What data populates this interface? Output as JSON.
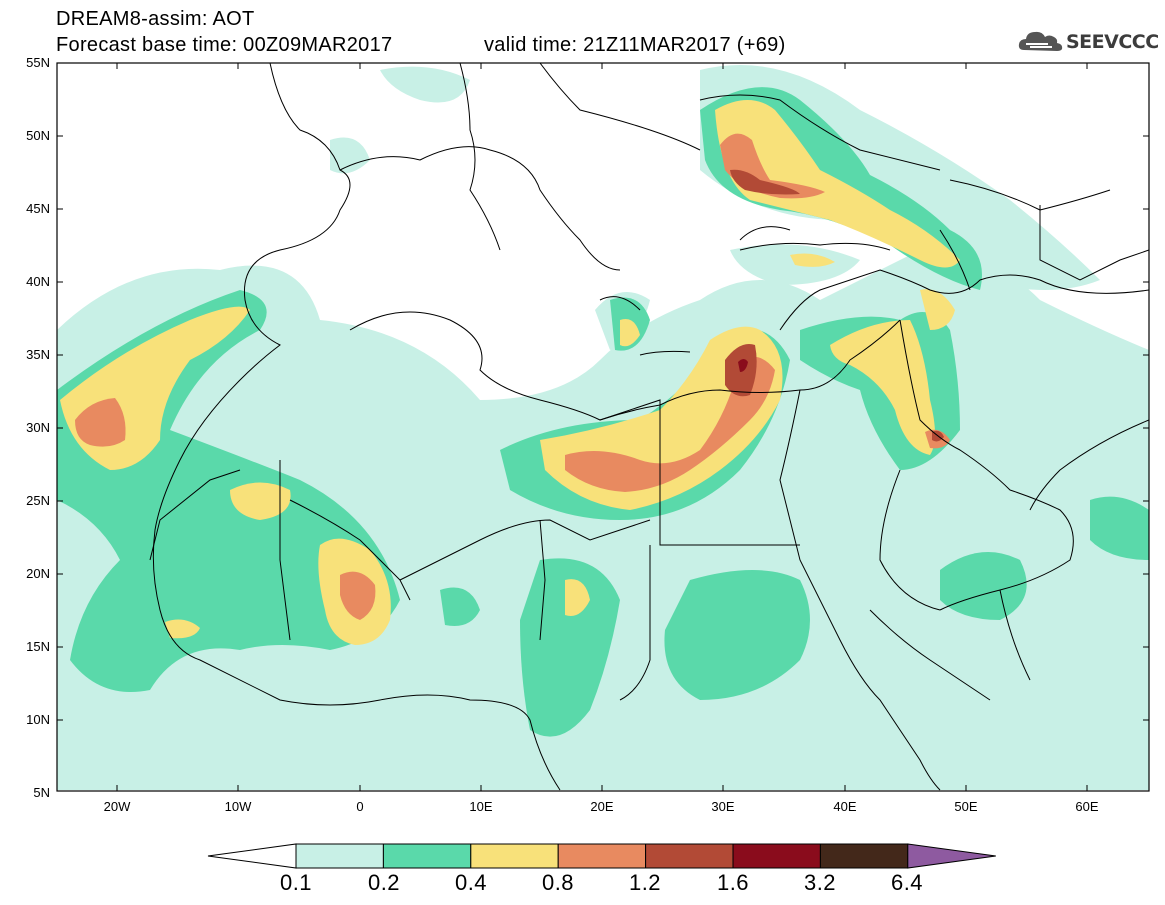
{
  "header": {
    "line1": "DREAM8-assim: AOT",
    "line2": "Forecast base time: 00Z09MAR2017",
    "valid": "valid time: 21Z11MAR2017 (+69)",
    "logo_text": "SEEVCCC"
  },
  "axes": {
    "lat_labels": [
      "55N",
      "50N",
      "45N",
      "40N",
      "35N",
      "30N",
      "25N",
      "20N",
      "15N",
      "10N",
      "5N"
    ],
    "lon_labels": [
      "20W",
      "10W",
      "0",
      "10E",
      "20E",
      "30E",
      "40E",
      "50E",
      "60E"
    ]
  },
  "colorbar": {
    "labels": [
      "0.1",
      "0.2",
      "0.4",
      "0.8",
      "1.2",
      "1.6",
      "3.2",
      "6.4"
    ],
    "colors": [
      "#ffffff",
      "#c8f0e6",
      "#5ad9aa",
      "#f8e17a",
      "#e88a60",
      "#b24a36",
      "#8a0c1c",
      "#43281a",
      "#8e5aa0"
    ]
  },
  "map_data": {
    "region": "North Africa, Europe and Middle East",
    "variable": "AOT",
    "lon_range": [
      -25,
      65
    ],
    "lat_range": [
      5,
      55
    ]
  }
}
